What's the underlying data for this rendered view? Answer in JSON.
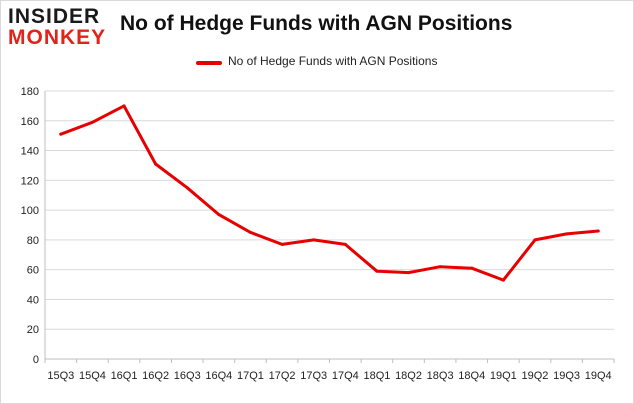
{
  "logo": {
    "line1": "INSIDER",
    "line2": "MONKEY"
  },
  "chart_data": {
    "type": "line",
    "title": "No of Hedge Funds with AGN Positions",
    "categories": [
      "15Q3",
      "15Q4",
      "16Q1",
      "16Q2",
      "16Q3",
      "16Q4",
      "17Q1",
      "17Q2",
      "17Q3",
      "17Q4",
      "18Q1",
      "18Q2",
      "18Q3",
      "18Q4",
      "19Q1",
      "19Q2",
      "19Q3",
      "19Q4"
    ],
    "series": [
      {
        "name": "No of Hedge Funds with AGN Positions",
        "color": "#e60000",
        "values": [
          151,
          159,
          170,
          131,
          115,
          97,
          85,
          77,
          80,
          77,
          59,
          58,
          62,
          61,
          53,
          80,
          84,
          86
        ]
      }
    ],
    "ylim": [
      0,
      180
    ],
    "yticks": [
      0,
      20,
      40,
      60,
      80,
      100,
      120,
      140,
      160,
      180
    ],
    "grid": true,
    "legend": "top"
  }
}
